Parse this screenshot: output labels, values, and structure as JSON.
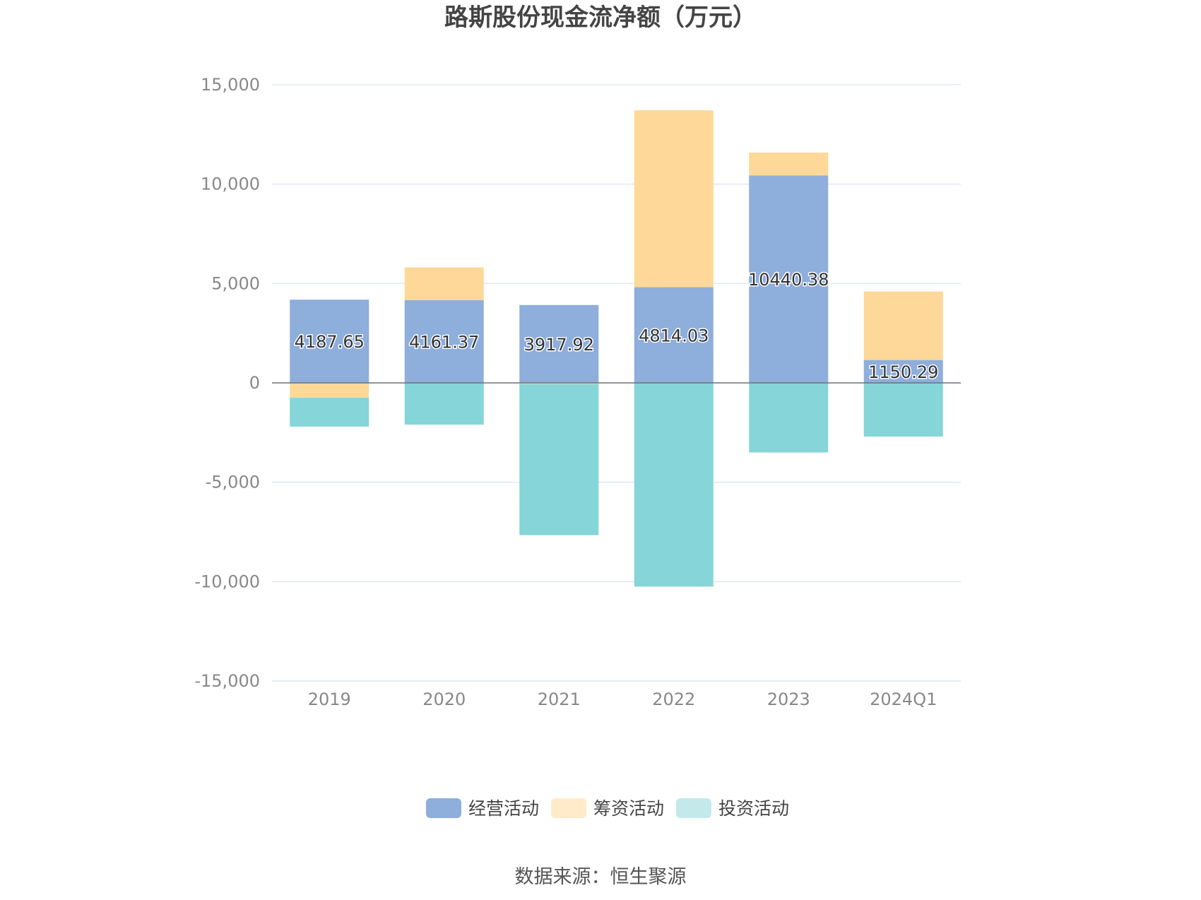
{
  "chart_data": {
    "type": "bar",
    "stacked": true,
    "title": "路斯股份现金流净额（万元）",
    "categories": [
      "2019",
      "2020",
      "2021",
      "2022",
      "2023",
      "2024Q1"
    ],
    "series": [
      {
        "name": "经营活动",
        "color": "#8eaedb",
        "values": [
          4187.65,
          4161.37,
          3917.92,
          4814.03,
          10440.38,
          1150.29
        ],
        "labels": [
          "4187.65",
          "4161.37",
          "3917.92",
          "4814.03",
          "10440.38",
          "1150.29"
        ]
      },
      {
        "name": "筹资活动",
        "color": "#fdd898",
        "values": [
          -750,
          1650,
          -60,
          8900,
          1150,
          3450
        ]
      },
      {
        "name": "投资活动",
        "color": "#86d5d8",
        "values": [
          -1450,
          -2100,
          -7600,
          -10250,
          -3500,
          -2700
        ]
      }
    ],
    "ylim": [
      -15000,
      15000
    ],
    "yticks": [
      15000,
      10000,
      5000,
      0,
      -5000,
      -10000,
      -15000
    ],
    "ytick_labels": [
      "15,000",
      "10,000",
      "5,000",
      "0",
      "-5,000",
      "-10,000",
      "-15,000"
    ],
    "legend_position": "bottom",
    "legend_swatch_colors": [
      "#8eaedb",
      "#ffebc9",
      "#c3e9eb"
    ],
    "grid": true
  },
  "source": "数据来源：恒生聚源"
}
